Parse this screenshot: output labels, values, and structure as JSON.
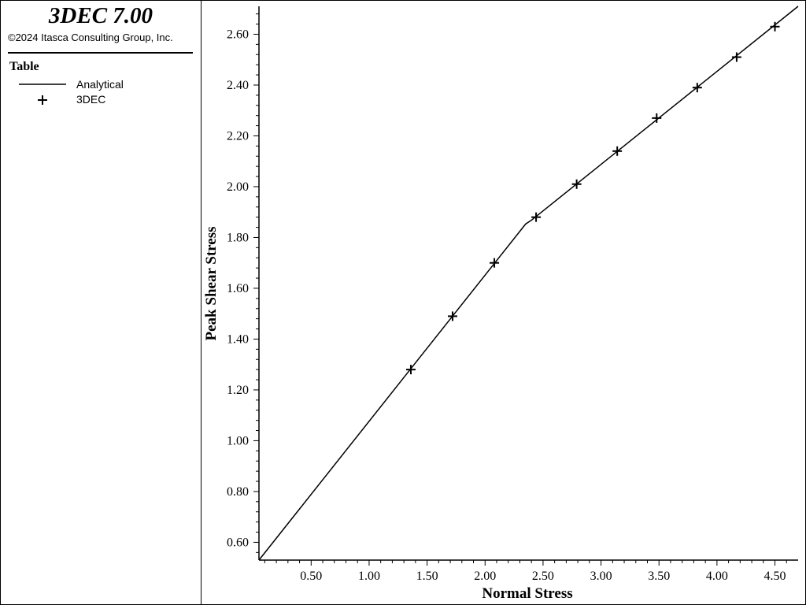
{
  "app": {
    "title": "3DEC 7.00",
    "copyright": "©2024 Itasca Consulting Group, Inc."
  },
  "legend": {
    "heading": "Table",
    "entries": [
      {
        "label": "Analytical",
        "symbol": "line"
      },
      {
        "label": "3DEC",
        "symbol": "plus"
      }
    ]
  },
  "chart_data": {
    "type": "line",
    "xlabel": "Normal Stress",
    "ylabel": "Peak Shear Stress",
    "xlim": [
      0.05,
      4.7
    ],
    "ylim": [
      0.53,
      2.71
    ],
    "xticks": [
      "0.50",
      "1.00",
      "1.50",
      "2.00",
      "2.50",
      "3.00",
      "3.50",
      "4.00",
      "4.50"
    ],
    "yticks": [
      "0.60",
      "0.80",
      "1.00",
      "1.20",
      "1.40",
      "1.60",
      "1.80",
      "2.00",
      "2.20",
      "2.40",
      "2.60"
    ],
    "grid": false,
    "series": [
      {
        "name": "Analytical",
        "style": "line",
        "color": "#000000",
        "x": [
          0.05,
          2.35,
          2.4,
          4.7
        ],
        "y": [
          0.53,
          1.853,
          1.868,
          2.71
        ]
      },
      {
        "name": "3DEC",
        "style": "plus",
        "color": "#000000",
        "x": [
          1.36,
          1.72,
          2.08,
          2.44,
          2.79,
          3.14,
          3.48,
          3.83,
          4.17,
          4.5
        ],
        "y": [
          1.28,
          1.49,
          1.7,
          1.88,
          2.01,
          2.14,
          2.27,
          2.39,
          2.51,
          2.63
        ]
      }
    ]
  }
}
